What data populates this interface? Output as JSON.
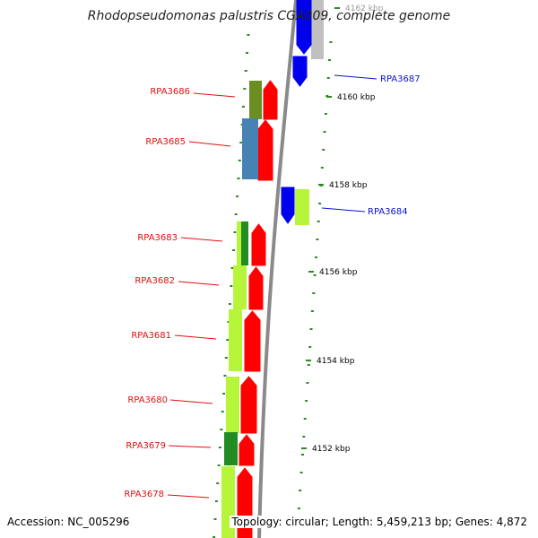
{
  "title": "Rhodopseudomonas palustris CGA009, complete genome",
  "accession": "Accession: NC_005296",
  "summary": "Topology: circular; Length: 5,459,213 bp; Genes: 4,872",
  "colors": {
    "backbone": "#8a8a8a",
    "tick": "#2e8b22",
    "label_red": "#e01010",
    "label_blue": "#0a14c8",
    "cds_forward": "#ff0000",
    "cds_reverse": "#0000ee",
    "cds_gray": "#c0c0c0",
    "lime": "#b6f53a",
    "olive": "#6b8e23",
    "steelblue": "#4682b4",
    "darkgreen": "#228b22"
  },
  "ruler": [
    {
      "label": "4162 kbp"
    },
    {
      "label": "4160 kbp"
    },
    {
      "label": "4158 kbp"
    },
    {
      "label": "4156 kbp"
    },
    {
      "label": "4154 kbp"
    },
    {
      "label": "4152 kbp"
    }
  ],
  "genes": [
    {
      "name": "RPA3687",
      "strand": "reverse",
      "label_color": "blue"
    },
    {
      "name": "RPA3686",
      "strand": "forward",
      "label_color": "red"
    },
    {
      "name": "RPA3685",
      "strand": "forward",
      "label_color": "red"
    },
    {
      "name": "RPA3684",
      "strand": "reverse",
      "label_color": "blue"
    },
    {
      "name": "RPA3683",
      "strand": "forward",
      "label_color": "red"
    },
    {
      "name": "RPA3682",
      "strand": "forward",
      "label_color": "red"
    },
    {
      "name": "RPA3681",
      "strand": "forward",
      "label_color": "red"
    },
    {
      "name": "RPA3680",
      "strand": "forward",
      "label_color": "red"
    },
    {
      "name": "RPA3679",
      "strand": "forward",
      "label_color": "red"
    },
    {
      "name": "RPA3678",
      "strand": "forward",
      "label_color": "red"
    }
  ]
}
